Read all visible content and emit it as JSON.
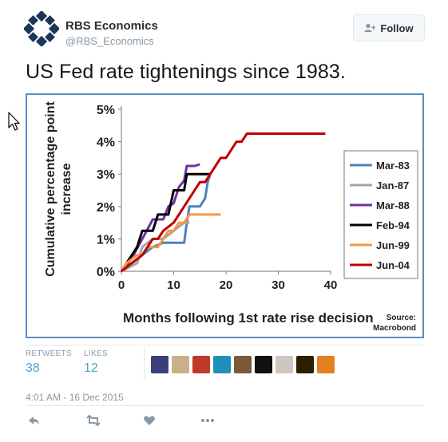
{
  "account": {
    "name": "RBS Economics",
    "handle": "@RBS_Economics",
    "follow_label": "Follow"
  },
  "tweet": {
    "text": "US Fed rate tightenings since 1983.",
    "timestamp": "4:01 AM - 16 Dec 2015"
  },
  "stats": {
    "retweets_label": "RETWEETS",
    "retweets": "38",
    "likes_label": "LIKES",
    "likes": "12"
  },
  "avatars": [
    "#3a3f7a",
    "#c9b08a",
    "#c0392b",
    "#1f8fb9",
    "#7a5a3a",
    "#111111",
    "#cfc7bd",
    "#2a2000",
    "#e67e22"
  ],
  "actions": [
    "reply-icon",
    "retweet-icon",
    "like-icon",
    "more-icon"
  ],
  "chart_data": {
    "type": "line",
    "xlabel": "Months following 1st rate rise decision",
    "ylabel": "Cumulative percentage point increase",
    "xlim": [
      0,
      40
    ],
    "ylim": [
      0,
      5
    ],
    "x_ticks": [
      0,
      10,
      20,
      30,
      40
    ],
    "y_ticks": [
      0,
      1,
      2,
      3,
      4,
      5
    ],
    "y_tick_labels": [
      "0%",
      "1%",
      "2%",
      "3%",
      "4%",
      "5%"
    ],
    "source": [
      "Source:",
      "Macrobond"
    ],
    "legend_position": "right",
    "grid": false,
    "series": [
      {
        "name": "Mar-83",
        "color": "#4f81bd",
        "points": [
          [
            0,
            0
          ],
          [
            2,
            0.25
          ],
          [
            4,
            0.5
          ],
          [
            6,
            0.75
          ],
          [
            8,
            0.88
          ],
          [
            10,
            0.88
          ],
          [
            12,
            0.88
          ],
          [
            12.5,
            1.5
          ],
          [
            13,
            2
          ],
          [
            15,
            2
          ],
          [
            16,
            2.25
          ],
          [
            16.5,
            2.75
          ],
          [
            17,
            3
          ]
        ]
      },
      {
        "name": "Jan-87",
        "color": "#a5a5a5",
        "points": [
          [
            0,
            0
          ],
          [
            3,
            0.25
          ],
          [
            4,
            0.75
          ],
          [
            6,
            1
          ],
          [
            8,
            1
          ],
          [
            10,
            1.25
          ],
          [
            12,
            1.5
          ],
          [
            13,
            1.5
          ]
        ]
      },
      {
        "name": "Mar-88",
        "color": "#7030a0",
        "points": [
          [
            0,
            0
          ],
          [
            2,
            0.4
          ],
          [
            4,
            1
          ],
          [
            5,
            1.3
          ],
          [
            6,
            1.6
          ],
          [
            8,
            1.6
          ],
          [
            9,
            2
          ],
          [
            10,
            2.1
          ],
          [
            11,
            2.6
          ],
          [
            12,
            2.8
          ],
          [
            12.5,
            3.25
          ],
          [
            14,
            3.25
          ],
          [
            15,
            3.3
          ]
        ]
      },
      {
        "name": "Feb-94",
        "color": "#000000",
        "points": [
          [
            0,
            0
          ],
          [
            1,
            0.25
          ],
          [
            2,
            0.5
          ],
          [
            3,
            0.75
          ],
          [
            4,
            1.25
          ],
          [
            6,
            1.25
          ],
          [
            7,
            1.75
          ],
          [
            9,
            1.75
          ],
          [
            10,
            2.5
          ],
          [
            12,
            2.5
          ],
          [
            12.5,
            3
          ],
          [
            15,
            3
          ],
          [
            16,
            3
          ],
          [
            17,
            3
          ]
        ]
      },
      {
        "name": "Jun-99",
        "color": "#f79646",
        "points": [
          [
            0,
            0
          ],
          [
            1,
            0.25
          ],
          [
            3,
            0.5
          ],
          [
            4,
            0.5
          ],
          [
            5,
            0.75
          ],
          [
            7,
            0.75
          ],
          [
            8,
            1
          ],
          [
            9,
            1.25
          ],
          [
            10,
            1.25
          ],
          [
            11,
            1.5
          ],
          [
            12,
            1.5
          ],
          [
            13,
            1.75
          ],
          [
            19,
            1.75
          ]
        ]
      },
      {
        "name": "Jun-04",
        "color": "#c00000",
        "points": [
          [
            0,
            0
          ],
          [
            2,
            0.25
          ],
          [
            4,
            0.5
          ],
          [
            5,
            0.75
          ],
          [
            6,
            1
          ],
          [
            7,
            1
          ],
          [
            8,
            1.25
          ],
          [
            10,
            1.5
          ],
          [
            11,
            1.75
          ],
          [
            12,
            2
          ],
          [
            13,
            2.25
          ],
          [
            14,
            2.5
          ],
          [
            15,
            2.75
          ],
          [
            16,
            2.75
          ],
          [
            17,
            3
          ],
          [
            18,
            3.25
          ],
          [
            19,
            3.5
          ],
          [
            20,
            3.5
          ],
          [
            21,
            3.75
          ],
          [
            22,
            4
          ],
          [
            23,
            4
          ],
          [
            24,
            4.25
          ],
          [
            39,
            4.25
          ]
        ]
      }
    ]
  }
}
